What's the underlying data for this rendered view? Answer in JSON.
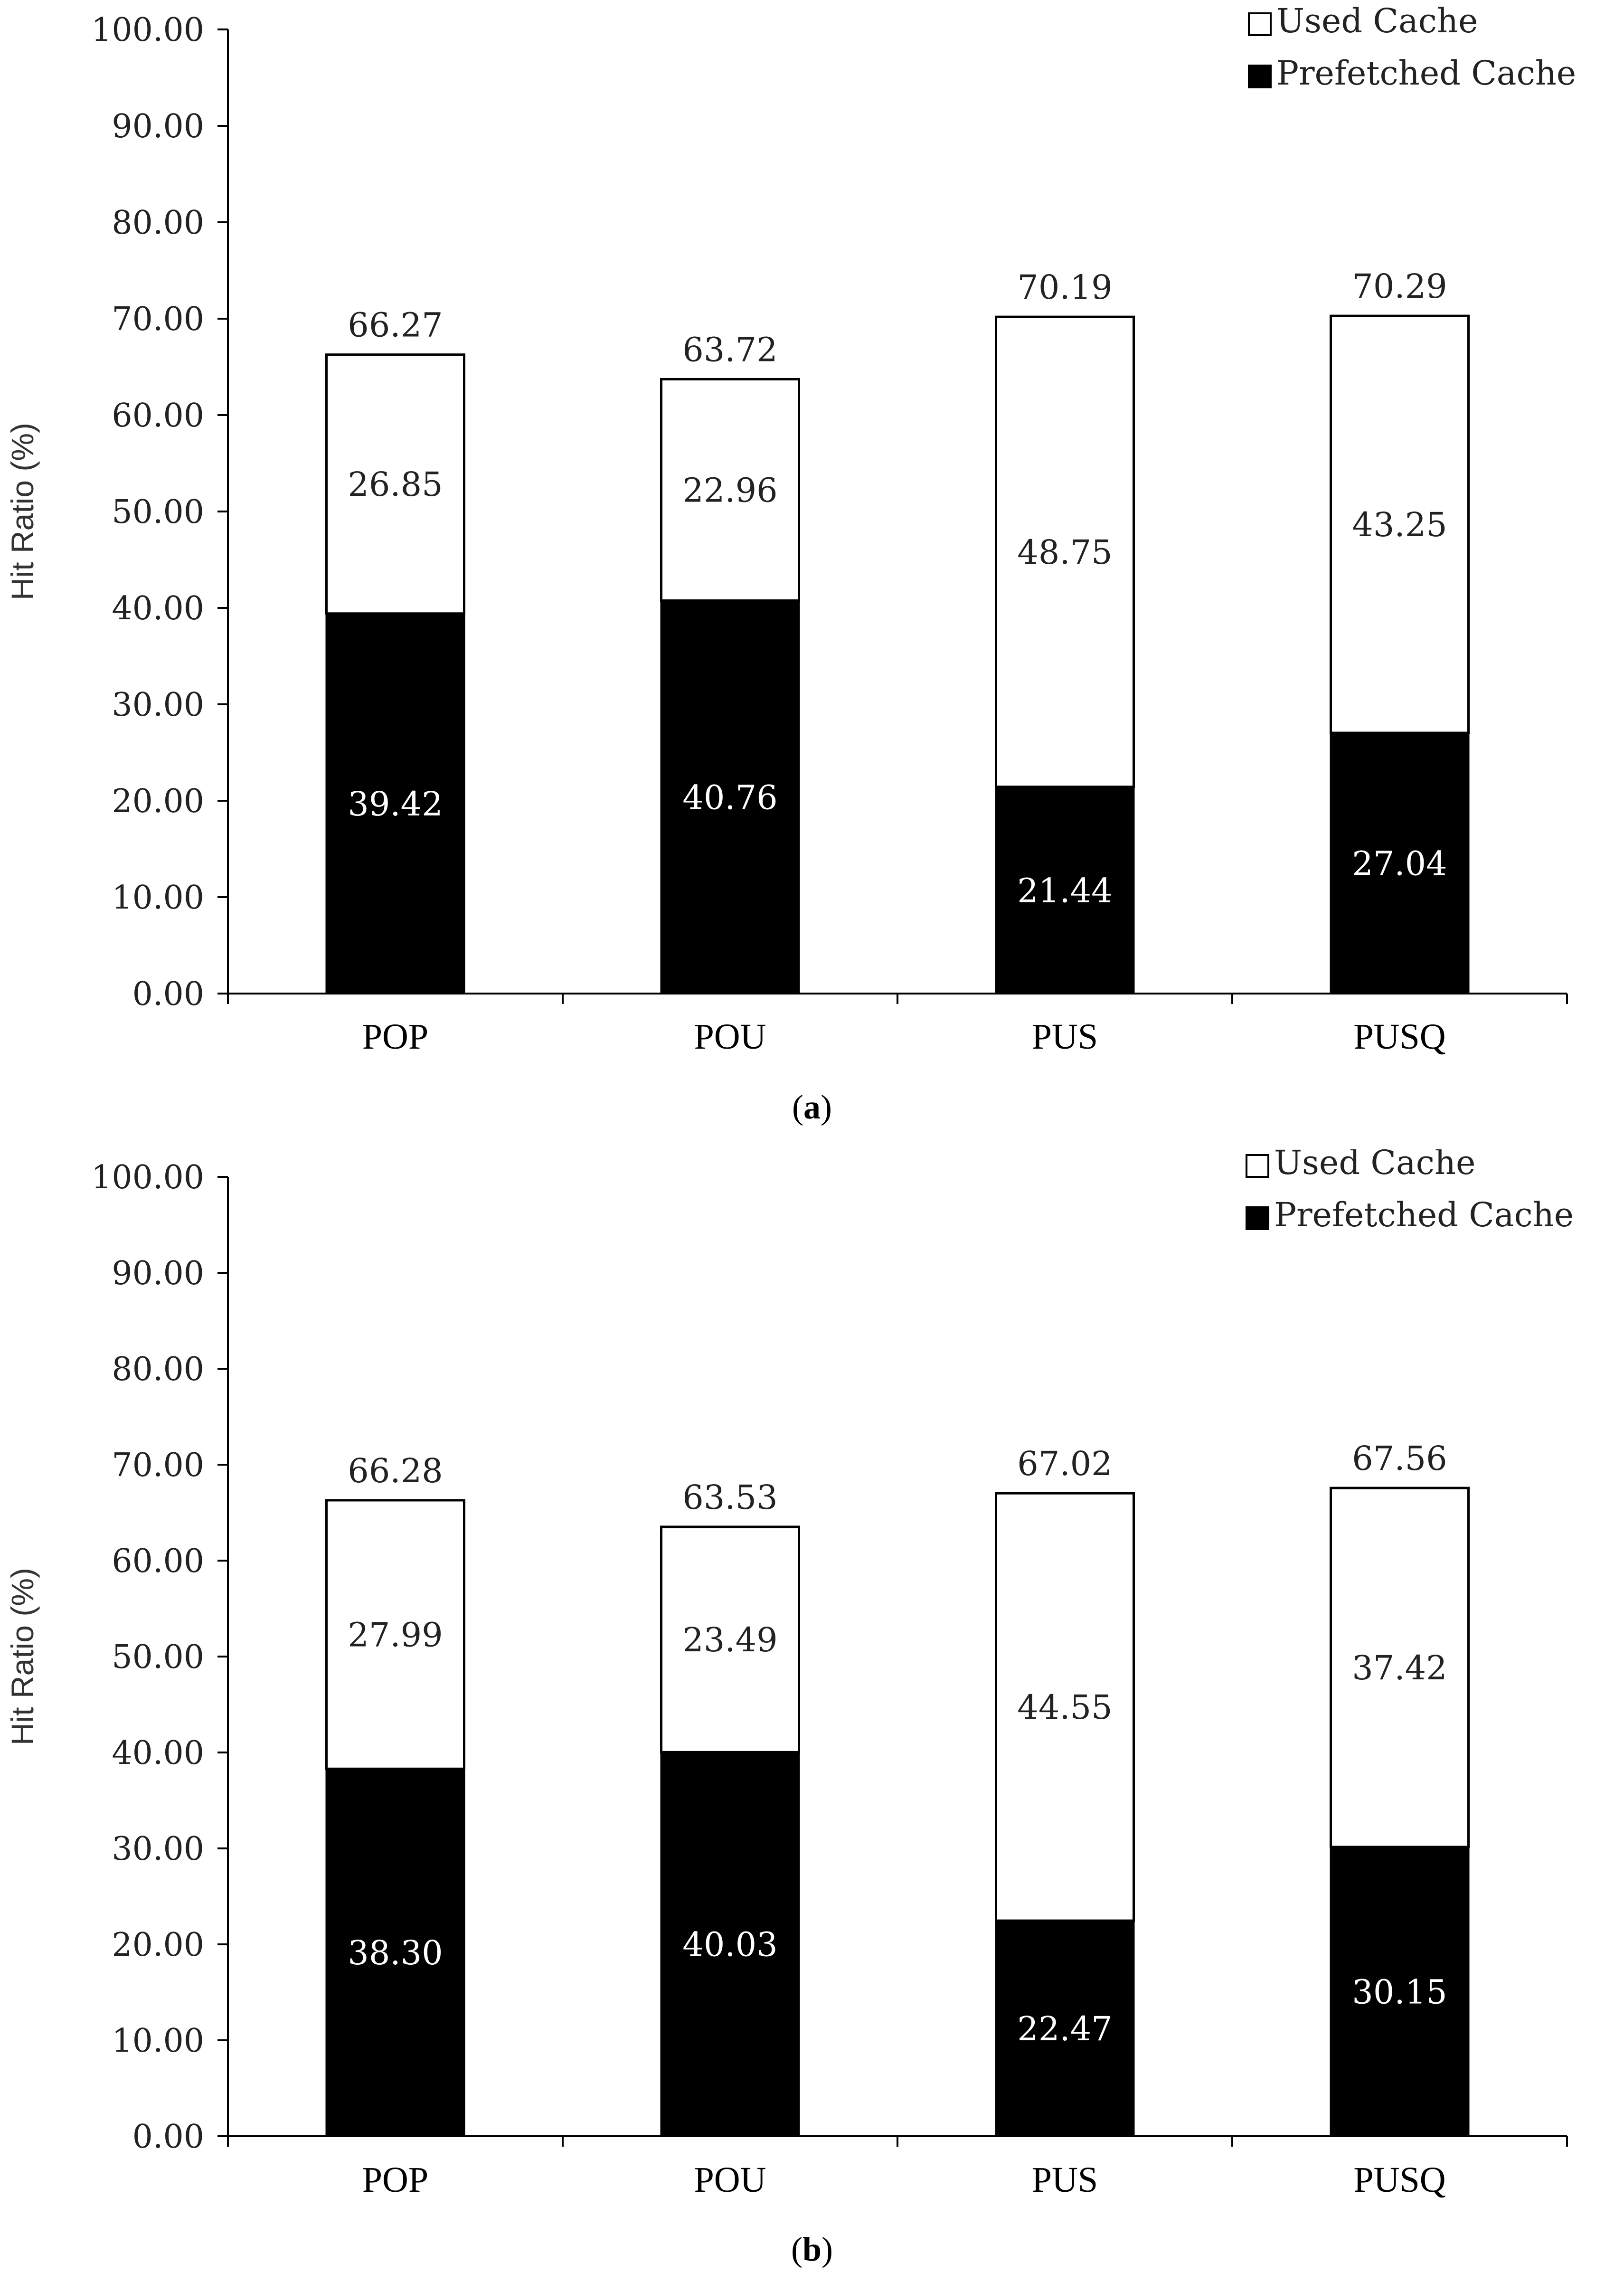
{
  "chart_data": [
    {
      "type": "bar",
      "stacked": true,
      "panel": "a",
      "caption_letter": "a",
      "caption_open": "(",
      "caption_close": ")",
      "ylabel": "Hit Ratio (%)",
      "xlabel": "",
      "ylim": [
        0,
        100
      ],
      "yticks": [
        "0.00",
        "10.00",
        "20.00",
        "30.00",
        "40.00",
        "50.00",
        "60.00",
        "70.00",
        "80.00",
        "90.00",
        "100.00"
      ],
      "categories": [
        "POP",
        "POU",
        "PUS",
        "PUSQ"
      ],
      "series": [
        {
          "name": "Prefetched Cache",
          "color": "#000000",
          "values": [
            39.42,
            40.76,
            21.44,
            27.04
          ],
          "labels": [
            "39.42",
            "40.76",
            "21.44",
            "27.04"
          ]
        },
        {
          "name": "Used Cache",
          "color": "#ffffff",
          "values": [
            26.85,
            22.96,
            48.75,
            43.25
          ],
          "labels": [
            "26.85",
            "22.96",
            "48.75",
            "43.25"
          ]
        }
      ],
      "totals": [
        66.27,
        63.72,
        70.19,
        70.29
      ],
      "total_labels": [
        "66.27",
        "63.72",
        "70.19",
        "70.29"
      ],
      "legend": [
        "Used Cache",
        "Prefetched Cache"
      ],
      "legend_position": "top-right"
    },
    {
      "type": "bar",
      "stacked": true,
      "panel": "b",
      "caption_letter": "b",
      "caption_open": "(",
      "caption_close": ")",
      "ylabel": "Hit Ratio (%)",
      "xlabel": "",
      "ylim": [
        0,
        100
      ],
      "yticks": [
        "0.00",
        "10.00",
        "20.00",
        "30.00",
        "40.00",
        "50.00",
        "60.00",
        "70.00",
        "80.00",
        "90.00",
        "100.00"
      ],
      "categories": [
        "POP",
        "POU",
        "PUS",
        "PUSQ"
      ],
      "series": [
        {
          "name": "Prefetched Cache",
          "color": "#000000",
          "values": [
            38.3,
            40.03,
            22.47,
            30.15
          ],
          "labels": [
            "38.30",
            "40.03",
            "22.47",
            "30.15"
          ]
        },
        {
          "name": "Used Cache",
          "color": "#ffffff",
          "values": [
            27.99,
            23.49,
            44.55,
            37.42
          ],
          "labels": [
            "27.99",
            "23.49",
            "44.55",
            "37.42"
          ]
        }
      ],
      "totals": [
        66.28,
        63.53,
        67.02,
        67.56
      ],
      "total_labels": [
        "66.28",
        "63.53",
        "67.02",
        "67.56"
      ],
      "legend": [
        "Used Cache",
        "Prefetched Cache"
      ],
      "legend_position": "top-right"
    }
  ]
}
